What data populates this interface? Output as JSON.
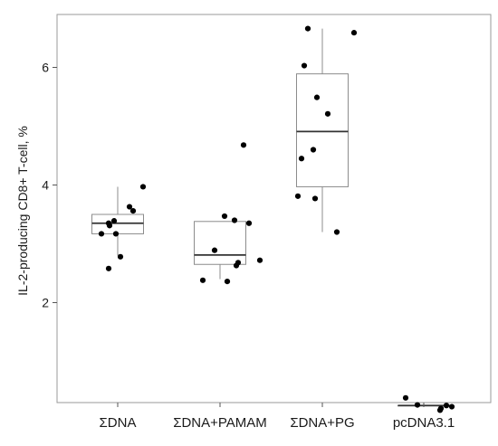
{
  "chart_data": {
    "type": "boxplot",
    "title": "",
    "xlabel": "",
    "ylabel": "IL-2-producing  CD8+ T-cell, %",
    "ylim": [
      0.3,
      6.9
    ],
    "yticks": [
      2,
      4,
      6
    ],
    "grid": false,
    "colors": {
      "box_stroke": "#8c8c8c",
      "median": "#333333",
      "points": "#000000",
      "frame": "#9a9a9a"
    },
    "categories": [
      "ΣDNA",
      "ΣDNA+PAMAM",
      "ΣDNA+PG",
      "pcDNA3.1"
    ],
    "boxes": [
      {
        "category": "ΣDNA",
        "min": 2.8,
        "q1": 3.17,
        "median": 3.35,
        "q3": 3.5,
        "max": 3.97
      },
      {
        "category": "ΣDNA+PAMAM",
        "min": 2.4,
        "q1": 2.65,
        "median": 2.81,
        "q3": 3.38,
        "max": 3.38
      },
      {
        "category": "ΣDNA+PG",
        "min": 3.2,
        "q1": 3.97,
        "median": 4.91,
        "q3": 5.89,
        "max": 6.66
      },
      {
        "category": "pcDNA3.1",
        "min": 0.25,
        "q1": 0.25,
        "median": 0.25,
        "q3": 0.25,
        "max": 0.25
      }
    ],
    "points": [
      {
        "category": "ΣDNA",
        "values": [
          3.97,
          3.63,
          3.56,
          3.39,
          3.35,
          3.31,
          3.17,
          3.17,
          2.78,
          2.58
        ]
      },
      {
        "category": "ΣDNA+PAMAM",
        "values": [
          4.68,
          3.47,
          3.4,
          3.35,
          2.89,
          2.72,
          2.68,
          2.63,
          2.38,
          2.36
        ]
      },
      {
        "category": "ΣDNA+PG",
        "values": [
          6.66,
          6.59,
          6.03,
          5.49,
          5.21,
          4.6,
          4.45,
          3.81,
          3.77,
          3.2
        ]
      },
      {
        "category": "pcDNA3.1",
        "values": [
          0.38,
          0.26,
          0.25,
          0.23,
          0.2,
          0.17
        ]
      }
    ]
  }
}
